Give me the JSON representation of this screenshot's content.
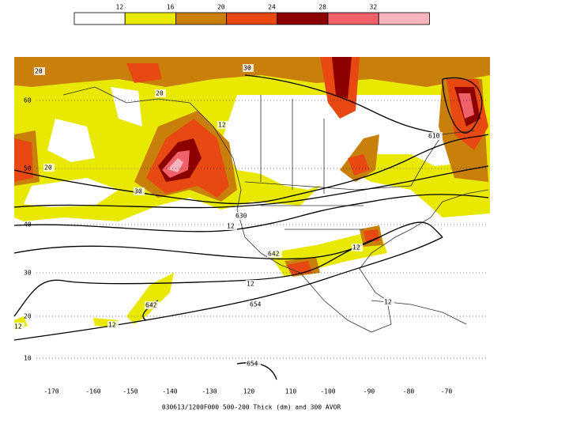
{
  "legend": {
    "entries": [
      {
        "label": "12",
        "color": "#ffffff"
      },
      {
        "label": "16",
        "color": "#e8e800"
      },
      {
        "label": "20",
        "color": "#c8800a"
      },
      {
        "label": "24",
        "color": "#e84812"
      },
      {
        "label": "28",
        "color": "#8c0000"
      },
      {
        "label": "32",
        "color": "#f06068"
      },
      {
        "label": null,
        "color": "#f8b4bc"
      }
    ]
  },
  "lat_labels": [
    "60",
    "50",
    "40",
    "30",
    "20",
    "10"
  ],
  "lon_labels": [
    "-170",
    "-160",
    "-150",
    "-140",
    "-130",
    "120",
    "110",
    "-100",
    "-90",
    "-80",
    "-70"
  ],
  "contour_labels": [
    "20",
    "20",
    "30",
    "20",
    "30",
    "12",
    "610",
    "630",
    "12",
    "642",
    "12",
    "12",
    "654",
    "642",
    "12",
    "654",
    "12",
    "12"
  ],
  "caption": "030613/1200F000 500-200 Thick (dm) and 300 AVOR"
}
